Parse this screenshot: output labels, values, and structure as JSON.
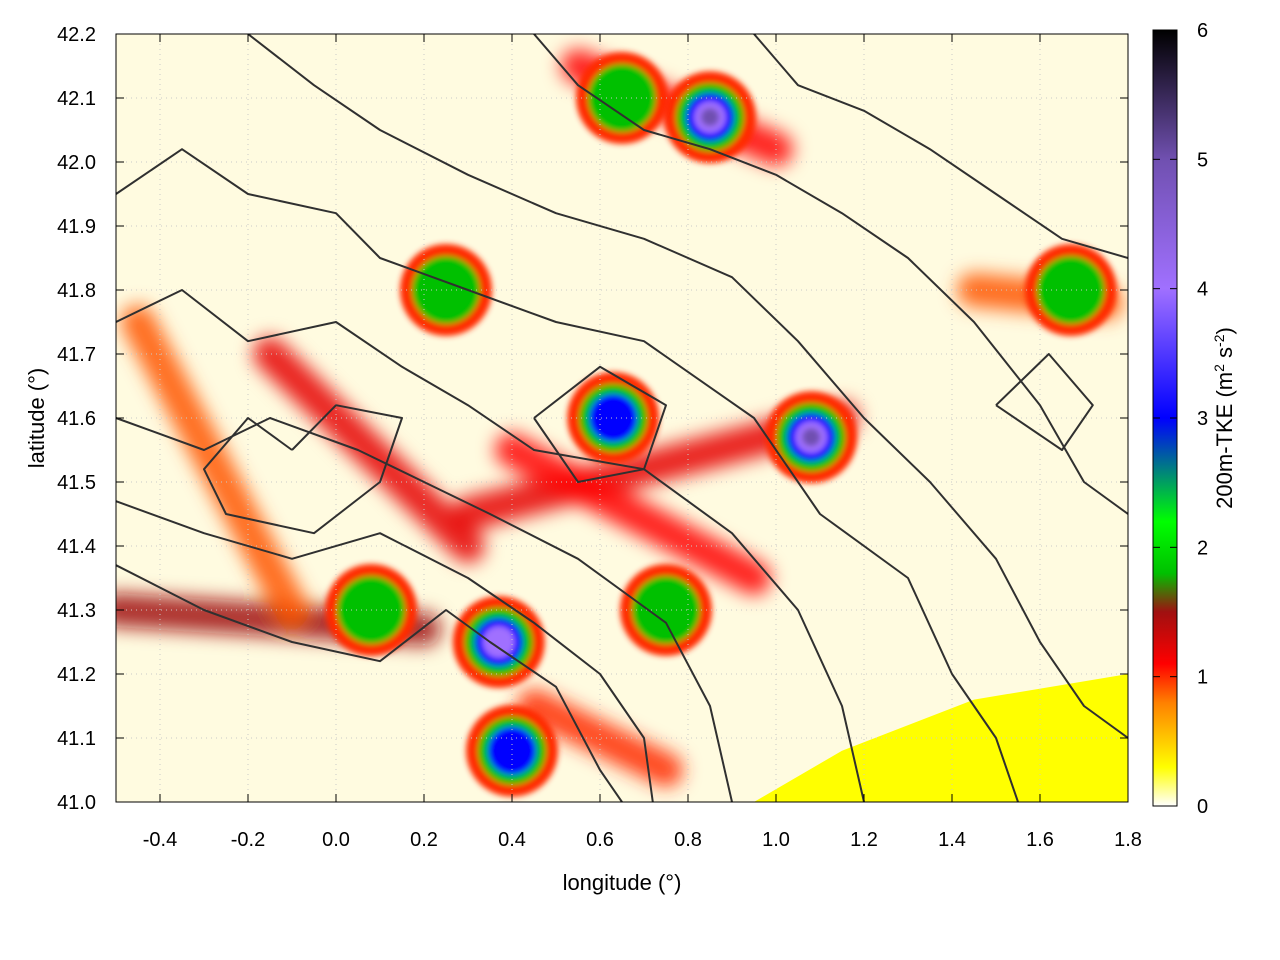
{
  "chart_data": {
    "type": "heatmap",
    "title": "",
    "xlabel": "longitude (°)",
    "ylabel": "latitude (°)",
    "colorbar_label": "200m-TKE (m² s⁻²)",
    "colorbar_label_main": "200m-TKE (m",
    "colorbar_label_sup1": "2",
    "colorbar_label_mid": " s",
    "colorbar_label_sup2": "-2",
    "colorbar_label_end": ")",
    "xlim": [
      -0.5,
      1.8
    ],
    "ylim": [
      41.0,
      42.2
    ],
    "clim": [
      0,
      6
    ],
    "x_ticks": [
      -0.4,
      -0.2,
      0.0,
      0.2,
      0.4,
      0.6,
      0.8,
      1.0,
      1.2,
      1.4,
      1.6,
      1.8
    ],
    "x_tick_labels": [
      "-0.4",
      "-0.2",
      "0.0",
      "0.2",
      "0.4",
      "0.6",
      "0.8",
      "1.0",
      "1.2",
      "1.4",
      "1.6",
      "1.8"
    ],
    "y_ticks": [
      41.0,
      41.1,
      41.2,
      41.3,
      41.4,
      41.5,
      41.6,
      41.7,
      41.8,
      41.9,
      42.0,
      42.1,
      42.2
    ],
    "y_tick_labels": [
      "41.0",
      "41.1",
      "41.2",
      "41.3",
      "41.4",
      "41.5",
      "41.6",
      "41.7",
      "41.8",
      "41.9",
      "42.0",
      "42.1",
      "42.2"
    ],
    "colorbar_ticks": [
      0,
      1,
      2,
      3,
      4,
      5,
      6
    ],
    "colorbar_tick_labels": [
      "0",
      "1",
      "2",
      "3",
      "4",
      "5",
      "6"
    ],
    "colormap": [
      {
        "value": 0.0,
        "color": "#ffffff"
      },
      {
        "value": 0.3,
        "color": "#ffff00"
      },
      {
        "value": 0.8,
        "color": "#ff8000"
      },
      {
        "value": 1.1,
        "color": "#ff0000"
      },
      {
        "value": 1.5,
        "color": "#a01010"
      },
      {
        "value": 1.8,
        "color": "#00c000"
      },
      {
        "value": 2.2,
        "color": "#00ff00"
      },
      {
        "value": 3.0,
        "color": "#0000ff"
      },
      {
        "value": 4.0,
        "color": "#a070ff"
      },
      {
        "value": 5.0,
        "color": "#7050b0"
      },
      {
        "value": 6.0,
        "color": "#000000"
      }
    ],
    "grid": true,
    "hotspots": [
      {
        "lon": 1.08,
        "lat": 41.57,
        "tke": 5.5
      },
      {
        "lon": 0.85,
        "lat": 42.07,
        "tke": 5.0
      },
      {
        "lon": 0.37,
        "lat": 41.25,
        "tke": 4.5
      },
      {
        "lon": 0.63,
        "lat": 41.6,
        "tke": 3.8
      },
      {
        "lon": 0.4,
        "lat": 41.08,
        "tke": 3.0
      },
      {
        "lon": 0.75,
        "lat": 41.3,
        "tke": 2.3
      },
      {
        "lon": 1.67,
        "lat": 41.8,
        "tke": 2.2
      },
      {
        "lon": 0.65,
        "lat": 42.1,
        "tke": 2.0
      },
      {
        "lon": 0.08,
        "lat": 41.3,
        "tke": 2.2
      },
      {
        "lon": 0.25,
        "lat": 41.8,
        "tke": 2.0
      }
    ],
    "bands": [
      {
        "from": [
          -0.5,
          41.3
        ],
        "to": [
          0.2,
          41.27
        ],
        "tke": 1.5
      },
      {
        "from": [
          -0.45,
          41.75
        ],
        "to": [
          -0.1,
          41.3
        ],
        "tke": 0.9
      },
      {
        "from": [
          -0.15,
          41.7
        ],
        "to": [
          0.3,
          41.4
        ],
        "tke": 1.2
      },
      {
        "from": [
          0.3,
          41.45
        ],
        "to": [
          1.15,
          41.6
        ],
        "tke": 1.2
      },
      {
        "from": [
          0.4,
          41.55
        ],
        "to": [
          0.95,
          41.35
        ],
        "tke": 1.1
      },
      {
        "from": [
          0.55,
          42.15
        ],
        "to": [
          1.0,
          42.02
        ],
        "tke": 1.1
      },
      {
        "from": [
          0.45,
          41.15
        ],
        "to": [
          0.75,
          41.05
        ],
        "tke": 1.0
      },
      {
        "from": [
          1.45,
          41.8
        ],
        "to": [
          1.75,
          41.78
        ],
        "tke": 0.9
      }
    ],
    "smooth_region": {
      "polygon": [
        [
          0.95,
          41.0
        ],
        [
          1.15,
          41.08
        ],
        [
          1.45,
          41.16
        ],
        [
          1.8,
          41.2
        ],
        [
          1.8,
          41.0
        ]
      ],
      "tke": 0.3
    },
    "contours": [
      [
        [
          -0.5,
          41.37
        ],
        [
          -0.3,
          41.3
        ],
        [
          -0.1,
          41.25
        ],
        [
          0.1,
          41.22
        ],
        [
          0.25,
          41.3
        ],
        [
          0.35,
          41.25
        ],
        [
          0.5,
          41.18
        ],
        [
          0.6,
          41.05
        ],
        [
          0.65,
          41.0
        ]
      ],
      [
        [
          -0.5,
          41.47
        ],
        [
          -0.3,
          41.42
        ],
        [
          -0.1,
          41.38
        ],
        [
          0.1,
          41.42
        ],
        [
          0.3,
          41.35
        ],
        [
          0.45,
          41.28
        ],
        [
          0.6,
          41.2
        ],
        [
          0.7,
          41.1
        ],
        [
          0.72,
          41.0
        ]
      ],
      [
        [
          -0.5,
          41.6
        ],
        [
          -0.3,
          41.55
        ],
        [
          -0.15,
          41.6
        ],
        [
          0.05,
          41.55
        ],
        [
          0.2,
          41.5
        ],
        [
          0.35,
          41.45
        ],
        [
          0.55,
          41.38
        ],
        [
          0.75,
          41.28
        ],
        [
          0.85,
          41.15
        ],
        [
          0.9,
          41.0
        ]
      ],
      [
        [
          -0.5,
          41.75
        ],
        [
          -0.35,
          41.8
        ],
        [
          -0.2,
          41.72
        ],
        [
          0.0,
          41.75
        ],
        [
          0.15,
          41.68
        ],
        [
          0.3,
          41.62
        ],
        [
          0.45,
          41.55
        ],
        [
          0.7,
          41.52
        ],
        [
          0.9,
          41.42
        ],
        [
          1.05,
          41.3
        ],
        [
          1.15,
          41.15
        ],
        [
          1.2,
          41.0
        ]
      ],
      [
        [
          -0.5,
          41.95
        ],
        [
          -0.35,
          42.02
        ],
        [
          -0.2,
          41.95
        ],
        [
          0.0,
          41.92
        ],
        [
          0.1,
          41.85
        ],
        [
          0.3,
          41.8
        ],
        [
          0.5,
          41.75
        ],
        [
          0.7,
          41.72
        ],
        [
          0.95,
          41.6
        ],
        [
          1.1,
          41.45
        ],
        [
          1.3,
          41.35
        ],
        [
          1.4,
          41.2
        ],
        [
          1.5,
          41.1
        ],
        [
          1.55,
          41.0
        ]
      ],
      [
        [
          -0.2,
          42.2
        ],
        [
          -0.05,
          42.12
        ],
        [
          0.1,
          42.05
        ],
        [
          0.3,
          41.98
        ],
        [
          0.5,
          41.92
        ],
        [
          0.7,
          41.88
        ],
        [
          0.9,
          41.82
        ],
        [
          1.05,
          41.72
        ],
        [
          1.2,
          41.6
        ],
        [
          1.35,
          41.5
        ],
        [
          1.5,
          41.38
        ],
        [
          1.6,
          41.25
        ],
        [
          1.7,
          41.15
        ],
        [
          1.8,
          41.1
        ]
      ],
      [
        [
          0.45,
          42.2
        ],
        [
          0.55,
          42.12
        ],
        [
          0.7,
          42.05
        ],
        [
          0.85,
          42.02
        ],
        [
          1.0,
          41.98
        ],
        [
          1.15,
          41.92
        ],
        [
          1.3,
          41.85
        ],
        [
          1.45,
          41.75
        ],
        [
          1.6,
          41.62
        ],
        [
          1.7,
          41.5
        ],
        [
          1.8,
          41.45
        ]
      ],
      [
        [
          0.95,
          42.2
        ],
        [
          1.05,
          42.12
        ],
        [
          1.2,
          42.08
        ],
        [
          1.35,
          42.02
        ],
        [
          1.5,
          41.95
        ],
        [
          1.65,
          41.88
        ],
        [
          1.8,
          41.85
        ]
      ],
      [
        [
          -0.1,
          41.55
        ],
        [
          0.0,
          41.62
        ],
        [
          0.15,
          41.6
        ],
        [
          0.1,
          41.5
        ],
        [
          -0.05,
          41.42
        ],
        [
          -0.25,
          41.45
        ],
        [
          -0.3,
          41.52
        ],
        [
          -0.2,
          41.6
        ],
        [
          -0.1,
          41.55
        ]
      ],
      [
        [
          0.45,
          41.6
        ],
        [
          0.6,
          41.68
        ],
        [
          0.75,
          41.62
        ],
        [
          0.7,
          41.52
        ],
        [
          0.55,
          41.5
        ],
        [
          0.45,
          41.6
        ]
      ],
      [
        [
          1.5,
          41.62
        ],
        [
          1.62,
          41.7
        ],
        [
          1.72,
          41.62
        ],
        [
          1.65,
          41.55
        ],
        [
          1.5,
          41.62
        ]
      ]
    ]
  }
}
